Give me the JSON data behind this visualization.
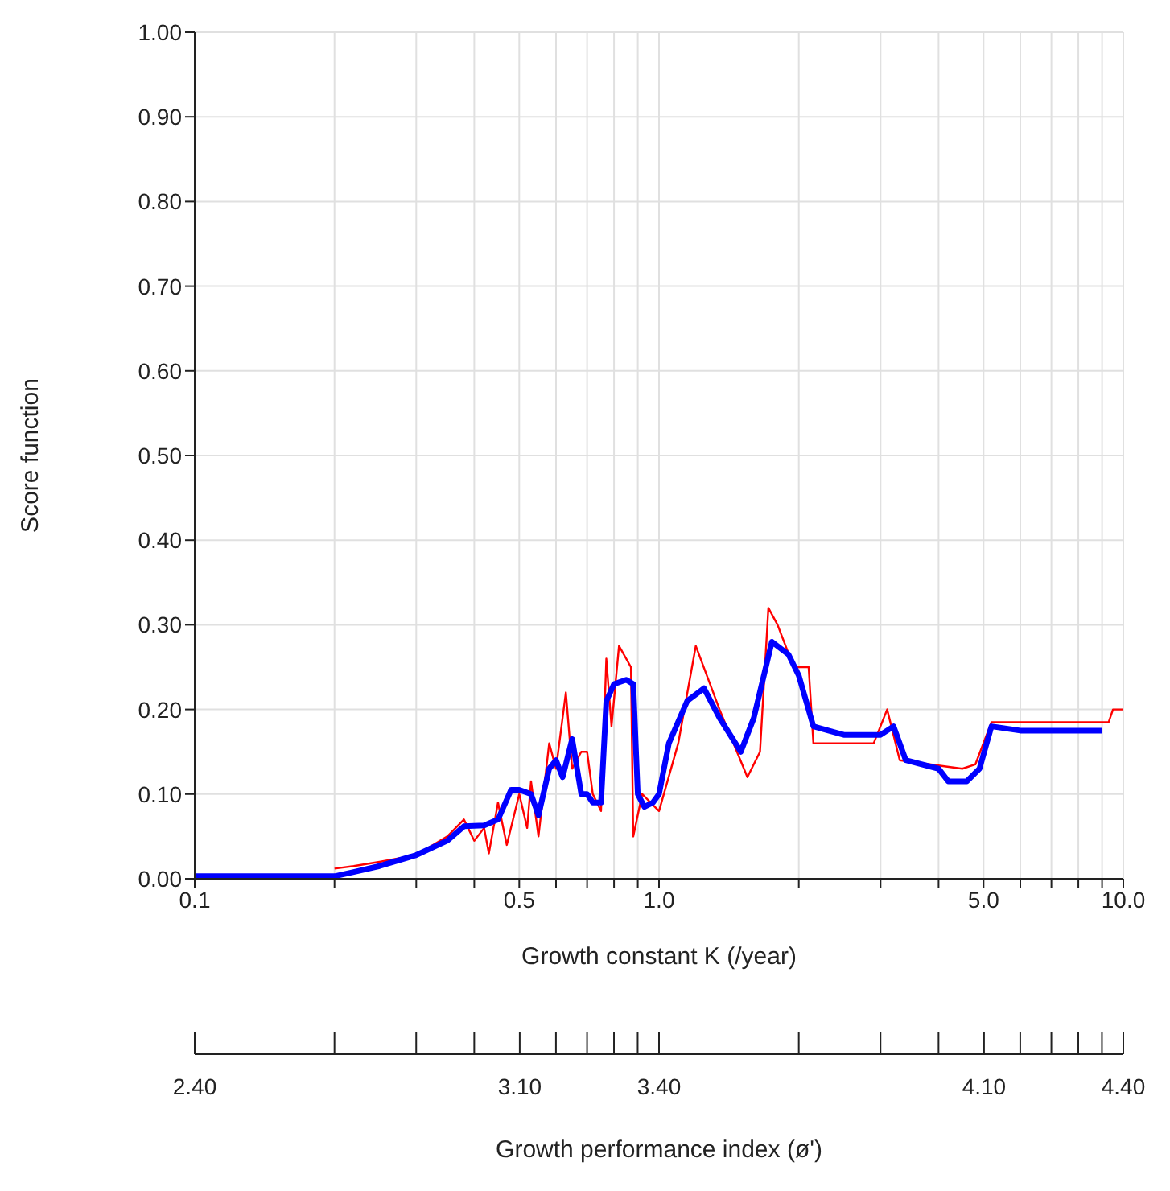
{
  "chart_data": {
    "type": "line",
    "xlabel": "Growth constant K (/year)",
    "ylabel": "Score function",
    "x2label": "Growth performance index (ø')",
    "log": "x",
    "grid": true,
    "xlim": [
      0.1,
      10
    ],
    "xticks": [
      {
        "value": 0.1,
        "label": "0.1"
      },
      {
        "value": 0.2,
        "label": null
      },
      {
        "value": 0.3,
        "label": null
      },
      {
        "value": 0.4,
        "label": null
      },
      {
        "value": 0.5,
        "label": "0.5"
      },
      {
        "value": 0.6,
        "label": null
      },
      {
        "value": 0.7,
        "label": null
      },
      {
        "value": 0.8,
        "label": null
      },
      {
        "value": 0.9,
        "label": null
      },
      {
        "value": 1,
        "label": "1.0"
      },
      {
        "value": 2,
        "label": null
      },
      {
        "value": 3,
        "label": null
      },
      {
        "value": 4,
        "label": null
      },
      {
        "value": 5,
        "label": "5.0"
      },
      {
        "value": 6,
        "label": null
      },
      {
        "value": 7,
        "label": null
      },
      {
        "value": 8,
        "label": null
      },
      {
        "value": 9,
        "label": null
      },
      {
        "value": 10,
        "label": "10.0"
      }
    ],
    "x2lim": [
      2.4,
      4.4
    ],
    "x2ticks": [
      {
        "value": 2.4,
        "label": "2.40"
      },
      {
        "value": 2.701,
        "label": null
      },
      {
        "value": 2.877,
        "label": null
      },
      {
        "value": 3.002,
        "label": null
      },
      {
        "value": 3.1,
        "label": "3.10"
      },
      {
        "value": 3.178,
        "label": null
      },
      {
        "value": 3.245,
        "label": null
      },
      {
        "value": 3.303,
        "label": null
      },
      {
        "value": 3.354,
        "label": null
      },
      {
        "value": 3.4,
        "label": "3.40"
      },
      {
        "value": 3.701,
        "label": null
      },
      {
        "value": 3.877,
        "label": null
      },
      {
        "value": 4.002,
        "label": null
      },
      {
        "value": 4.1,
        "label": "4.10"
      },
      {
        "value": 4.178,
        "label": null
      },
      {
        "value": 4.245,
        "label": null
      },
      {
        "value": 4.303,
        "label": null
      },
      {
        "value": 4.354,
        "label": null
      },
      {
        "value": 4.4,
        "label": "4.40"
      }
    ],
    "ylim": [
      0,
      1
    ],
    "yticks": [
      {
        "value": 0,
        "label": "0.00"
      },
      {
        "value": 0.1,
        "label": "0.10"
      },
      {
        "value": 0.2,
        "label": "0.20"
      },
      {
        "value": 0.3,
        "label": "0.30"
      },
      {
        "value": 0.4,
        "label": "0.40"
      },
      {
        "value": 0.5,
        "label": "0.50"
      },
      {
        "value": 0.6,
        "label": "0.60"
      },
      {
        "value": 0.7,
        "label": "0.70"
      },
      {
        "value": 0.8,
        "label": "0.80"
      },
      {
        "value": 0.9,
        "label": "0.90"
      },
      {
        "value": 1,
        "label": "1.00"
      }
    ],
    "series": [
      {
        "color": "#ff0000",
        "x": [
          0.2,
          0.22,
          0.25,
          0.3,
          0.35,
          0.38,
          0.4,
          0.42,
          0.43,
          0.45,
          0.47,
          0.5,
          0.52,
          0.53,
          0.55,
          0.58,
          0.6,
          0.63,
          0.65,
          0.68,
          0.7,
          0.72,
          0.75,
          0.77,
          0.79,
          0.82,
          0.87,
          0.88,
          0.92,
          1.0,
          1.1,
          1.2,
          1.35,
          1.55,
          1.65,
          1.72,
          1.8,
          1.95,
          2.1,
          2.15,
          2.9,
          3.1,
          3.3,
          4.5,
          4.8,
          5.2,
          9.3,
          9.5,
          10
        ],
        "values": [
          0.012,
          0.015,
          0.02,
          0.028,
          0.05,
          0.07,
          0.045,
          0.06,
          0.03,
          0.09,
          0.04,
          0.1,
          0.06,
          0.115,
          0.05,
          0.16,
          0.13,
          0.22,
          0.13,
          0.15,
          0.15,
          0.1,
          0.08,
          0.26,
          0.18,
          0.275,
          0.25,
          0.05,
          0.1,
          0.08,
          0.16,
          0.275,
          0.2,
          0.12,
          0.15,
          0.32,
          0.3,
          0.25,
          0.25,
          0.16,
          0.16,
          0.2,
          0.14,
          0.13,
          0.135,
          0.185,
          0.185,
          0.2,
          0.2
        ]
      },
      {
        "color": "#0000ff",
        "x": [
          0.1,
          0.2,
          0.22,
          0.25,
          0.3,
          0.35,
          0.38,
          0.42,
          0.45,
          0.48,
          0.5,
          0.53,
          0.55,
          0.58,
          0.6,
          0.62,
          0.65,
          0.68,
          0.7,
          0.72,
          0.75,
          0.77,
          0.8,
          0.85,
          0.88,
          0.9,
          0.93,
          0.97,
          1.0,
          1.05,
          1.15,
          1.25,
          1.35,
          1.5,
          1.6,
          1.75,
          1.9,
          2.0,
          2.15,
          2.5,
          3.0,
          3.2,
          3.4,
          4.0,
          4.2,
          4.6,
          4.9,
          5.2,
          6,
          9
        ],
        "values": [
          0.003,
          0.003,
          0.008,
          0.015,
          0.028,
          0.045,
          0.062,
          0.063,
          0.07,
          0.105,
          0.105,
          0.1,
          0.075,
          0.13,
          0.14,
          0.12,
          0.165,
          0.1,
          0.1,
          0.09,
          0.09,
          0.21,
          0.23,
          0.235,
          0.23,
          0.1,
          0.085,
          0.09,
          0.1,
          0.16,
          0.21,
          0.225,
          0.19,
          0.15,
          0.19,
          0.28,
          0.265,
          0.24,
          0.18,
          0.17,
          0.17,
          0.18,
          0.14,
          0.13,
          0.115,
          0.115,
          0.13,
          0.18,
          0.175,
          0.175
        ]
      }
    ]
  }
}
